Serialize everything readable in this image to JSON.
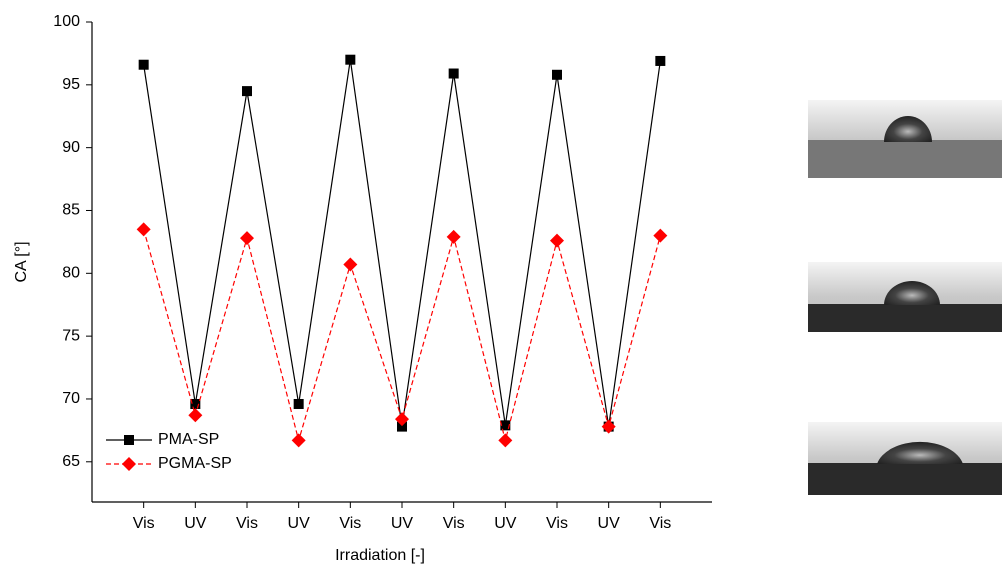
{
  "chart_data": {
    "type": "line",
    "xlabel": "Irradiation [-]",
    "ylabel": "CA [°]",
    "categories": [
      "Vis",
      "UV",
      "Vis",
      "UV",
      "Vis",
      "UV",
      "Vis",
      "UV",
      "Vis",
      "UV",
      "Vis"
    ],
    "series": [
      {
        "name": "PMA-SP",
        "color": "#000000",
        "marker": "square",
        "linestyle": "solid",
        "values": [
          96.6,
          69.6,
          94.5,
          69.6,
          97.0,
          67.8,
          95.9,
          67.9,
          95.8,
          67.8,
          96.9
        ]
      },
      {
        "name": "PGMA-SP",
        "color": "#ff0000",
        "marker": "diamond",
        "linestyle": "dashed",
        "values": [
          83.5,
          68.7,
          82.8,
          66.7,
          80.7,
          68.4,
          82.9,
          66.7,
          82.6,
          67.8,
          83.0
        ]
      }
    ],
    "ylim": [
      61.8,
      100
    ],
    "yticks": [
      65,
      70,
      75,
      80,
      85,
      90,
      95,
      100
    ],
    "legend": "lower left"
  }
}
